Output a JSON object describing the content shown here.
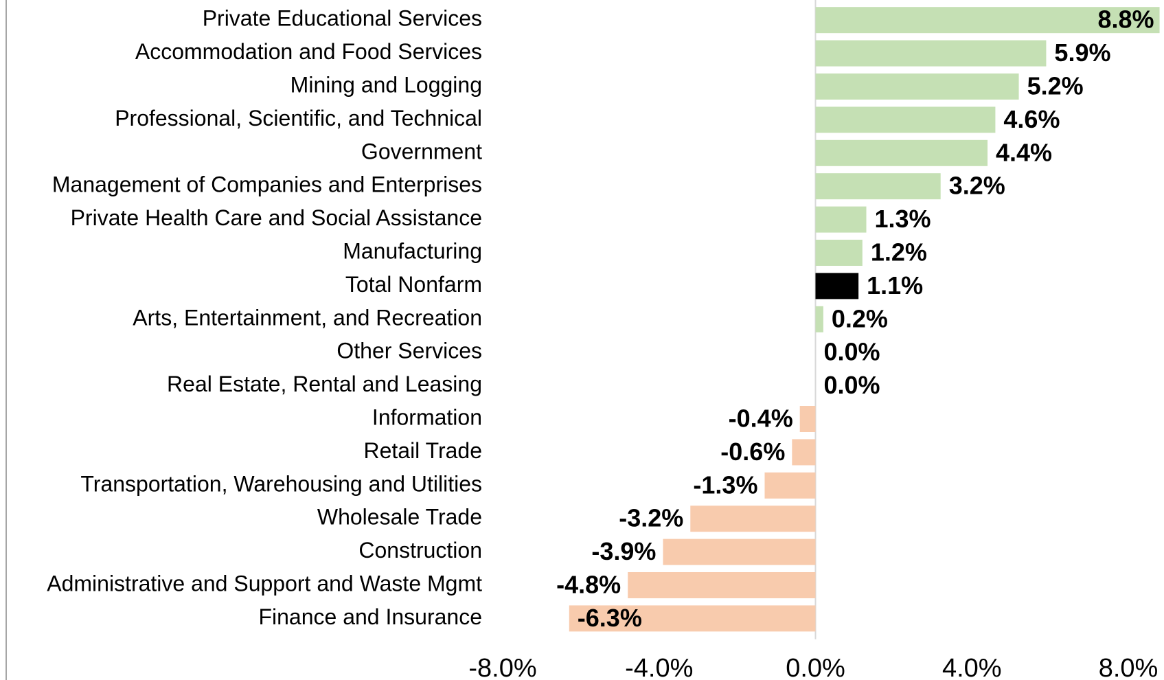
{
  "chart_data": {
    "type": "bar",
    "orientation": "horizontal",
    "categories": [
      "Private Educational Services",
      "Accommodation and Food Services",
      "Mining and Logging",
      "Professional, Scientific, and Technical",
      "Government",
      "Management of Companies and Enterprises",
      "Private Health Care and Social Assistance",
      "Manufacturing",
      "Total Nonfarm",
      "Arts, Entertainment, and Recreation",
      "Other Services",
      "Real Estate, Rental and Leasing",
      "Information",
      "Retail Trade",
      "Transportation, Warehousing and Utilities",
      "Wholesale Trade",
      "Construction",
      "Administrative and Support and Waste Mgmt",
      "Finance and Insurance"
    ],
    "values": [
      8.8,
      5.9,
      5.2,
      4.6,
      4.4,
      3.2,
      1.3,
      1.2,
      1.1,
      0.2,
      0.0,
      0.0,
      -0.4,
      -0.6,
      -1.3,
      -3.2,
      -3.9,
      -4.8,
      -6.3
    ],
    "value_labels": [
      "8.8%",
      "5.9%",
      "5.2%",
      "4.6%",
      "4.4%",
      "3.2%",
      "1.3%",
      "1.2%",
      "1.1%",
      "0.2%",
      "0.0%",
      "0.0%",
      "-0.4%",
      "-0.6%",
      "-1.3%",
      "-3.2%",
      "-3.9%",
      "-4.8%",
      "-6.3%"
    ],
    "colors": [
      "#c5e0b4",
      "#c5e0b4",
      "#c5e0b4",
      "#c5e0b4",
      "#c5e0b4",
      "#c5e0b4",
      "#c5e0b4",
      "#c5e0b4",
      "#000000",
      "#c5e0b4",
      "#c5e0b4",
      "#c5e0b4",
      "#f8cbad",
      "#f8cbad",
      "#f8cbad",
      "#f8cbad",
      "#f8cbad",
      "#f8cbad",
      "#f8cbad"
    ],
    "xlim": [
      -8,
      8
    ],
    "xticks": [
      {
        "value": -8,
        "label": "-8.0%"
      },
      {
        "value": -4,
        "label": "-4.0%"
      },
      {
        "value": 0,
        "label": "0.0%"
      },
      {
        "value": 4,
        "label": "4.0%"
      },
      {
        "value": 8,
        "label": "8.0%"
      }
    ],
    "grid": false
  }
}
